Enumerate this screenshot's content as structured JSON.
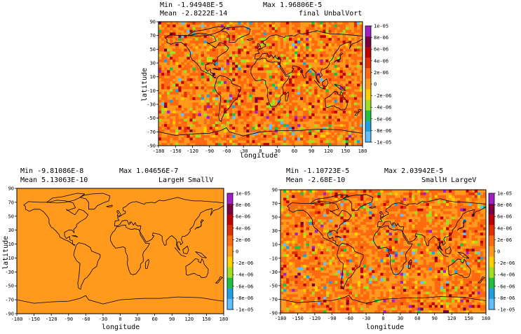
{
  "panels": [
    {
      "id": "top",
      "min_text": "Min -1.94948E-5",
      "max_text": "Max 1.96806E-5",
      "mean_text": "Mean -2.8222E-14",
      "name": "final UnbalVort",
      "xlabel": "longitude",
      "ylabel": "latitude",
      "noise_amplitude": 0.35,
      "colorbar_labels": [
        "1e-05",
        "8e-06",
        "6e-06",
        "4e-06",
        "2e-06",
        "0",
        "-2e-06",
        "-4e-06",
        "-6e-06",
        "-8e-06",
        "-1e-05"
      ]
    },
    {
      "id": "bottom-left",
      "min_text": "Min -9.81086E-8",
      "max_text": "Max 1.04656E-7",
      "mean_text": "Mean 5.13063E-10",
      "name": "LargeH SmallV",
      "xlabel": "longitude",
      "ylabel": "latitude",
      "noise_amplitude": 0.0,
      "colorbar_labels": [
        "1e-05",
        "8e-06",
        "6e-06",
        "4e-06",
        "2e-06",
        "0",
        "-2e-06",
        "-4e-06",
        "-6e-06",
        "-8e-06",
        "-1e-05"
      ]
    },
    {
      "id": "bottom-right",
      "min_text": "Min -1.10723E-5",
      "max_text": "Max 2.03942E-5",
      "mean_text": "Mean -2.68E-10",
      "name": "SmallH LargeV",
      "xlabel": "longitude",
      "ylabel": "latitude",
      "noise_amplitude": 0.3,
      "colorbar_labels": [
        "1e-05",
        "8e-06",
        "6e-06",
        "4e-06",
        "2e-06",
        "0",
        "-2e-06",
        "-4e-06",
        "-6e-06",
        "-8e-06",
        "-1e-05"
      ]
    }
  ],
  "x_ticks": [
    "-180",
    "-150",
    "-120",
    "-90",
    "-60",
    "-30",
    "0",
    "30",
    "60",
    "90",
    "120",
    "150",
    "180"
  ],
  "y_ticks": [
    "90",
    "70",
    "50",
    "30",
    "10",
    "-10",
    "-30",
    "-50",
    "-70",
    "-90"
  ],
  "colors": {
    "background_field": "#ff9a1c",
    "colorbar": [
      "#a020c8",
      "#7a0040",
      "#c00000",
      "#e23000",
      "#ff6a10",
      "#ff9a1c",
      "#ffd000",
      "#a0e020",
      "#20c040",
      "#20a0e0",
      "#60c0ff"
    ],
    "coastline": "#000000"
  }
}
